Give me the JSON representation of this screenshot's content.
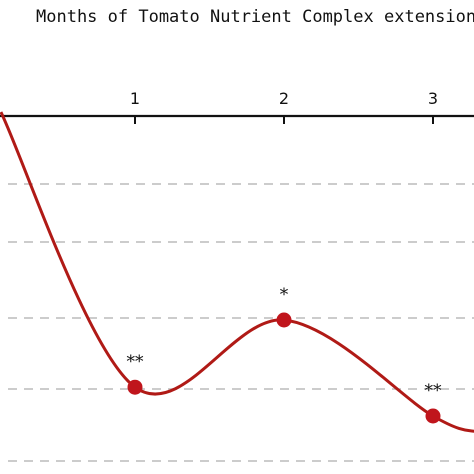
{
  "chart_data": {
    "type": "line",
    "title": "Months of Tomato Nutrient Complex extension treatm",
    "xlabel": "",
    "ylabel": "",
    "x_ticks": [
      1,
      2,
      3
    ],
    "x_visible_range": [
      0.1,
      3.3
    ],
    "grid": "horizontal dashed",
    "series": [
      {
        "color": "#b01a16",
        "smoothed": true,
        "points": [
          {
            "x": 0.1,
            "y": 0.95
          },
          {
            "x": 1,
            "y": 0.09,
            "label": "**"
          },
          {
            "x": 2,
            "y": 0.3,
            "label": "*"
          },
          {
            "x": 3,
            "y": 0.0,
            "label": "**"
          },
          {
            "x": 3.3,
            "y": -0.05
          }
        ],
        "marked_x": [
          1,
          2,
          3
        ]
      }
    ]
  },
  "colors": {
    "line": "#b01a16",
    "marker": "#c0151c",
    "grid": "#bbbbbb",
    "axis": "#111111"
  }
}
